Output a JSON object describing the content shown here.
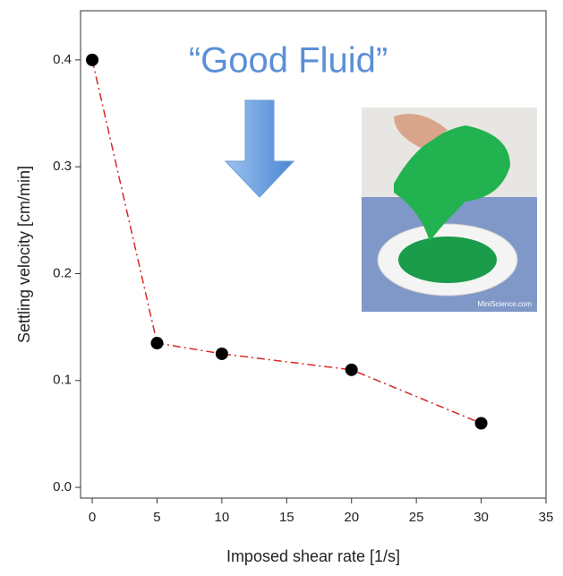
{
  "chart_data": {
    "type": "line",
    "x_label": "Imposed shear rate [1/s]",
    "y_label": "Settling velocity [cm/min]",
    "annotation": "“Good Fluid”",
    "image_caption": "MiniScience.com",
    "x": [
      0,
      5,
      10,
      20,
      30
    ],
    "series": [
      {
        "color": "#d62728",
        "marker_color": "#000000",
        "values": [
          0.4,
          0.135,
          0.125,
          0.11,
          0.06
        ]
      }
    ],
    "xlim": [
      -0.9,
      35
    ],
    "xticks": [
      0,
      5,
      10,
      15,
      20,
      25,
      30,
      35
    ],
    "ylim": [
      -0.01,
      0.446
    ],
    "yticks": [
      {
        "value": 0,
        "label": "0.0"
      },
      0.1,
      0.2,
      0.3,
      0.4
    ],
    "grid": false
  }
}
